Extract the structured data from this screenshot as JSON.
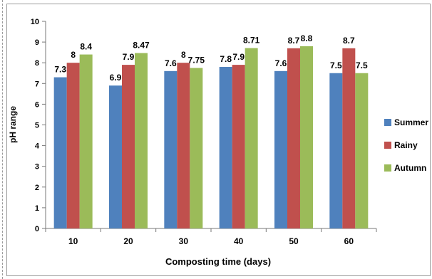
{
  "chart_data": {
    "type": "bar",
    "title": "",
    "xlabel": "Composting time (days)",
    "ylabel": "pH range",
    "categories": [
      "10",
      "20",
      "30",
      "40",
      "50",
      "60"
    ],
    "ylim": [
      0,
      10
    ],
    "yticks": [
      "0",
      "1",
      "2",
      "3",
      "4",
      "5",
      "6",
      "7",
      "8",
      "9",
      "10"
    ],
    "grid": false,
    "legend_position": "right",
    "series": [
      {
        "name": "Summer",
        "color": "#4F81BD",
        "values": [
          7.3,
          6.9,
          7.6,
          7.8,
          7.6,
          7.5
        ],
        "labels": [
          "7.3",
          "6.9",
          "7.6",
          "7.8",
          "7.6",
          "7.5"
        ]
      },
      {
        "name": "Rainy",
        "color": "#C0504D",
        "values": [
          8,
          7.9,
          8,
          7.9,
          8.7,
          8.7
        ],
        "labels": [
          "8",
          "7.9",
          "8",
          "7.9",
          "8.7",
          "8.7"
        ]
      },
      {
        "name": "Autumn",
        "color": "#9BBB59",
        "values": [
          8.4,
          8.47,
          7.75,
          8.71,
          8.8,
          7.5
        ],
        "labels": [
          "8.4",
          "8.47",
          "7.75",
          "8.71",
          "8.8",
          "7.5"
        ]
      }
    ]
  }
}
